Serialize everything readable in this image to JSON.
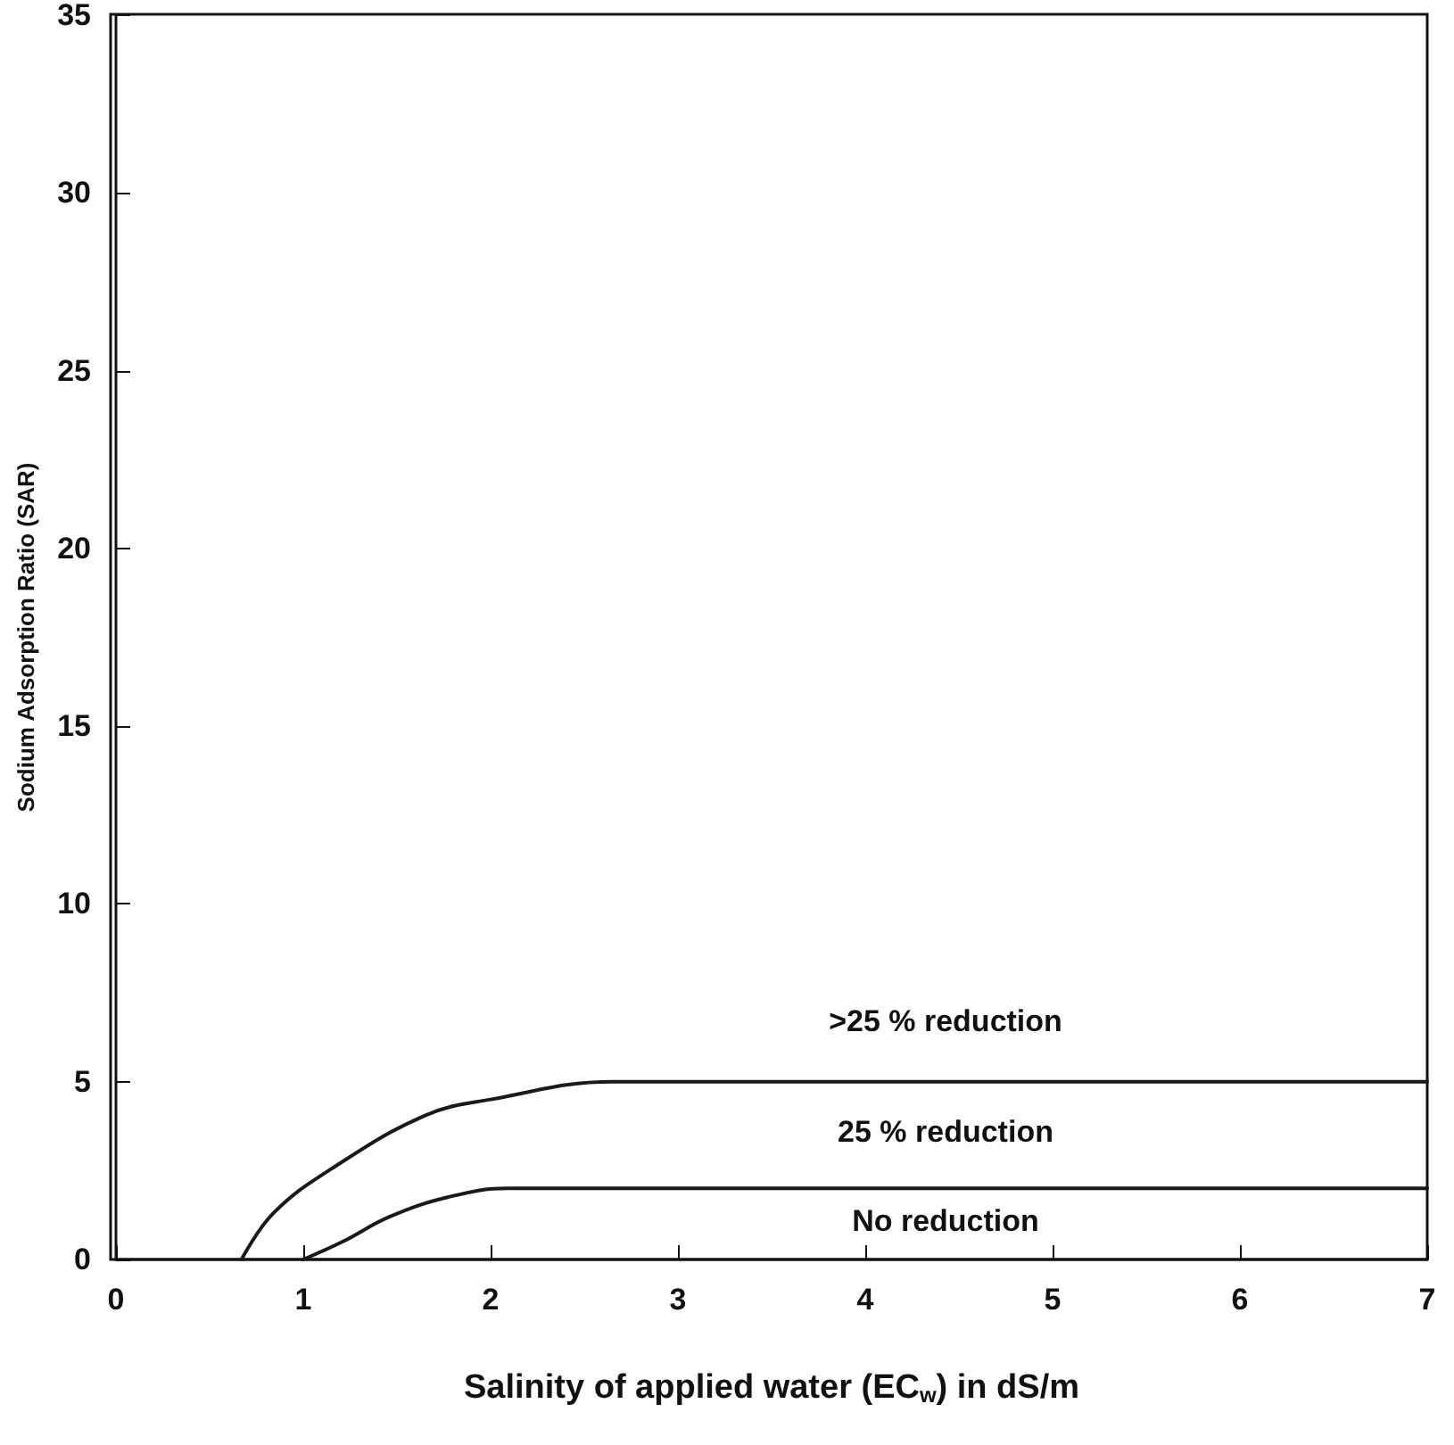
{
  "chart_data": {
    "type": "line",
    "xlabel": "Salinity of applied water (EC$_{w}$) in dS/m",
    "ylabel": "Sodium Adsorption Ratio (SAR)",
    "xlim": [
      0,
      7
    ],
    "xticks": [
      0,
      1,
      2,
      3,
      4,
      5,
      6,
      7
    ],
    "ylim": [
      0,
      35
    ],
    "yticks": [
      0,
      5,
      10,
      15,
      20,
      25,
      30,
      35
    ],
    "grid": false,
    "marker": "none",
    "line_style": "solid",
    "series": [
      {
        "color": "#1a1a1a",
        "x": [
          0.67,
          0.84,
          1.15,
          1.65,
          2.0,
          2.65,
          7
        ],
        "values": [
          0,
          1.3,
          2.55,
          4.05,
          4.5,
          5,
          5
        ]
      },
      {
        "color": "#1a1a1a",
        "x": [
          1,
          1.21,
          1.46,
          1.77,
          2.09,
          7
        ],
        "values": [
          0,
          0.5,
          1.2,
          1.75,
          2,
          2
        ]
      }
    ],
    "annotations": [
      ">25 % reduction",
      "25 % reduction",
      "No reduction"
    ]
  }
}
